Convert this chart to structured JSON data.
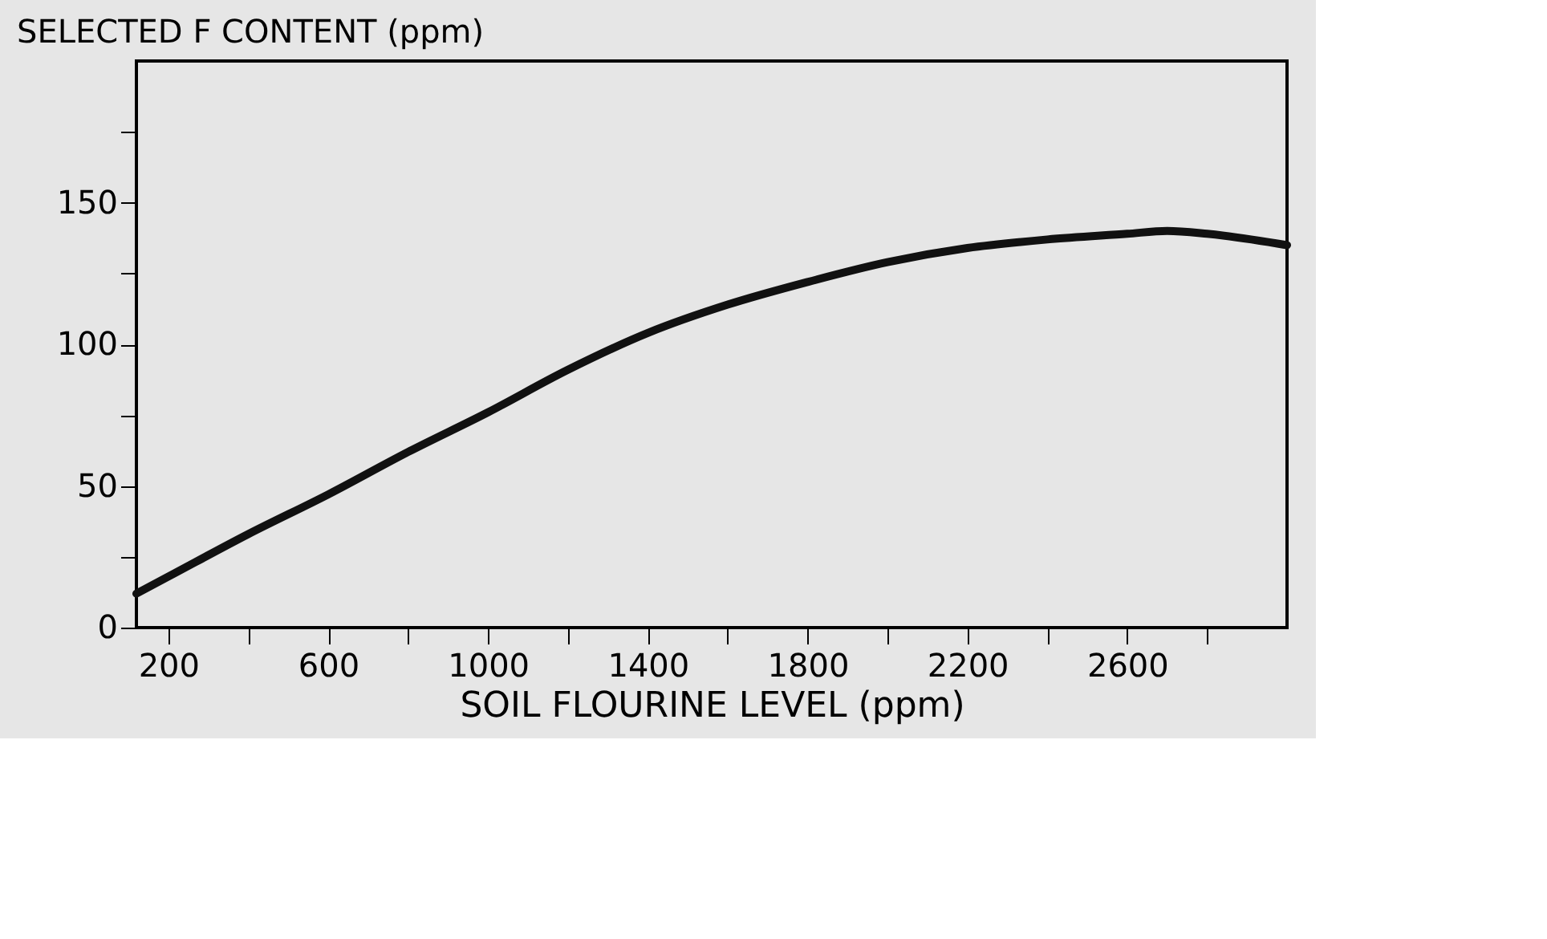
{
  "chart_data": {
    "type": "line",
    "xlabel": "SOIL FLOURINE LEVEL (ppm)",
    "ylabel": "SELECTED F CONTENT (ppm)",
    "x": [
      120,
      200,
      400,
      600,
      800,
      1000,
      1200,
      1400,
      1600,
      1800,
      2000,
      2200,
      2400,
      2600,
      2700,
      2800,
      3000
    ],
    "series": [
      {
        "color": "#111111",
        "values": [
          12,
          18,
          33,
          47,
          62,
          76,
          91,
          104,
          114,
          122,
          129,
          134,
          137,
          139,
          140,
          139,
          135
        ]
      }
    ],
    "xlim": [
      120,
      3000
    ],
    "ylim": [
      0,
      200
    ],
    "xticks": [
      200,
      {
        "value": 400,
        "label": null
      },
      600,
      {
        "value": 800,
        "label": null
      },
      1000,
      {
        "value": 1200,
        "label": null
      },
      1400,
      {
        "value": 1600,
        "label": null
      },
      1800,
      {
        "value": 2000,
        "label": null
      },
      2200,
      {
        "value": 2400,
        "label": null
      },
      2600,
      {
        "value": 2800,
        "label": null
      }
    ],
    "yticks": [
      0,
      {
        "value": 25,
        "label": null
      },
      50,
      {
        "value": 75,
        "label": null
      },
      100,
      {
        "value": 125,
        "label": null
      },
      150,
      {
        "value": 175,
        "label": null
      }
    ],
    "grid": false,
    "marker": "none",
    "line_style": "solid"
  }
}
